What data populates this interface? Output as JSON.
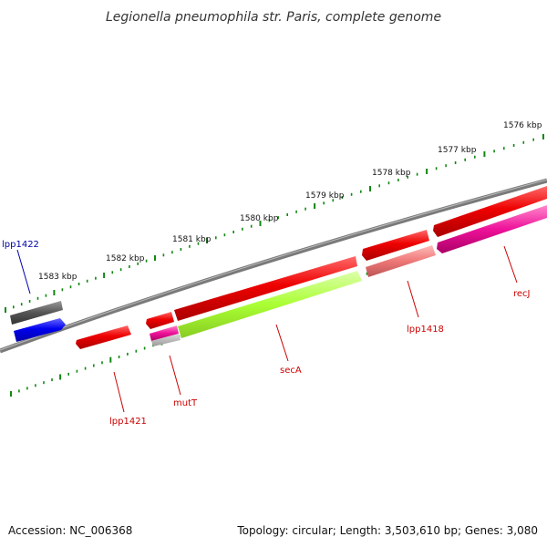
{
  "title": "Legionella pneumophila str. Paris, complete genome",
  "footer": {
    "accession": "Accession: NC_006368",
    "topology": "Topology: circular; Length: 3,503,610 bp; Genes: 3,080"
  },
  "scale_ticks": [
    "1576 kbp",
    "1577 kbp",
    "1578 kbp",
    "1579 kbp",
    "1580 kbp",
    "1581 kbp",
    "1582 kbp",
    "1583 kbp"
  ],
  "gene_labels": {
    "lpp1422": "lpp1422",
    "lpp1421": "lpp1421",
    "mutT": "mutT",
    "secA": "secA",
    "lpp1418": "lpp1418",
    "recJ": "recJ"
  },
  "colors": {
    "backbone": "#7a7a7a",
    "gene_red": "#ee0000",
    "gene_blue": "#0000ee",
    "gene_gray": "#555555",
    "gene_green": "#aaff33",
    "gene_pink": "#ee1199",
    "gene_salmon": "#ee7777",
    "tick_green": "#118811",
    "label_red": "#cc0000",
    "label_blue": "#0000aa"
  }
}
